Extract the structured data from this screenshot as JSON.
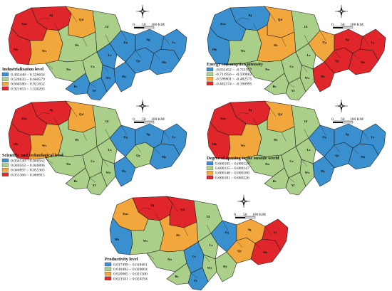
{
  "colors": {
    "blue": "#3a8fcf",
    "green": "#a9cf88",
    "orange": "#f2a73c",
    "red": "#e0262a"
  },
  "scale": {
    "zero": "0",
    "fifty": "50",
    "hundred": "100 KM"
  },
  "panels": [
    {
      "id": "industrialization",
      "title": "Industrialization level",
      "classes": [
        {
          "range": "0.435448 ~ 0.526634",
          "color": "#3a8fcf"
        },
        {
          "range": "0.526635 ~ 0.660579",
          "color": "#a9cf88"
        },
        {
          "range": "0.660580 ~ 0.921652",
          "color": "#f2a73c"
        },
        {
          "range": "0.921653 ~ 1.330205",
          "color": "#e0262a"
        }
      ],
      "regions": {
        "Bj": "red",
        "Km": "red",
        "Hb": "red",
        "Ws": "orange",
        "Qd": "orange",
        "Gl": "green",
        "Hc": "green",
        "Nn": "green",
        "Cz": "green",
        "Bs": "blue",
        "Lz": "blue",
        "Wz": "blue",
        "Yf": "blue",
        "Zq": "blue",
        "Hy": "blue",
        "Mz": "blue",
        "Qy": "blue",
        "Sg": "blue",
        "Ly": "blue"
      }
    },
    {
      "id": "energy",
      "title": "Energy consumption intensity",
      "classes": [
        {
          "range": "-0.831452 ~ -0.711957",
          "color": "#3a8fcf"
        },
        {
          "range": "-0.711956 ~ -0.599802",
          "color": "#a9cf88"
        },
        {
          "range": "-0.599801 ~ -0.482575",
          "color": "#f2a73c"
        },
        {
          "range": "-0.482574 ~ -0.398995",
          "color": "#e0262a"
        }
      ],
      "regions": {
        "Bj": "blue",
        "Km": "blue",
        "Hb": "blue",
        "Ws": "green",
        "Qd": "orange",
        "Gl": "green",
        "Hc": "orange",
        "Nn": "green",
        "Cz": "green",
        "Bs": "green",
        "Lz": "green",
        "Wz": "green",
        "Yf": "green",
        "Zq": "orange",
        "Hy": "red",
        "Mz": "red",
        "Qy": "red",
        "Sg": "red",
        "Ly": "red"
      }
    },
    {
      "id": "scitech",
      "title": "Scientific and technological level",
      "classes": [
        {
          "range": "0.034530 ~ 0.040562",
          "color": "#3a8fcf"
        },
        {
          "range": "0.040563 ~ 0.046896",
          "color": "#a9cf88"
        },
        {
          "range": "0.046897 ~ 0.055365",
          "color": "#f2a73c"
        },
        {
          "range": "0.055366 ~ 0.066915",
          "color": "#e0262a"
        }
      ],
      "regions": {
        "Bj": "red",
        "Km": "red",
        "Hb": "red",
        "Ws": "orange",
        "Qd": "orange",
        "Gl": "green",
        "Hc": "green",
        "Nn": "green",
        "Cz": "green",
        "Bs": "green",
        "Lz": "green",
        "Wz": "green",
        "Yf": "green",
        "Zq": "blue",
        "Hy": "blue",
        "Mz": "blue",
        "Qy": "green",
        "Sg": "blue",
        "Ly": "blue"
      }
    },
    {
      "id": "opening",
      "title": "Degree of opening to the outside world",
      "classes": [
        {
          "range": "0.000105 ~ 0.000124",
          "color": "#3a8fcf"
        },
        {
          "range": "0.000125 ~ 0.000147",
          "color": "#a9cf88"
        },
        {
          "range": "0.000148 ~ 0.000180",
          "color": "#f2a73c"
        },
        {
          "range": "0.000181 ~ 0.000226",
          "color": "#e0262a"
        }
      ],
      "regions": {
        "Bj": "red",
        "Km": "red",
        "Hb": "red",
        "Ws": "orange",
        "Qd": "orange",
        "Gl": "green",
        "Hc": "green",
        "Nn": "green",
        "Cz": "green",
        "Bs": "green",
        "Lz": "green",
        "Wz": "green",
        "Yf": "green",
        "Zq": "blue",
        "Hy": "blue",
        "Mz": "blue",
        "Qy": "blue",
        "Sg": "blue",
        "Ly": "blue"
      }
    },
    {
      "id": "productivity",
      "title": "Productivity level",
      "classes": [
        {
          "range": "0.017499 ~ 0.018481",
          "color": "#3a8fcf"
        },
        {
          "range": "0.018482 ~ 0.020004",
          "color": "#a9cf88"
        },
        {
          "range": "0.020005 ~ 0.021500",
          "color": "#f2a73c"
        },
        {
          "range": "0.021501 ~ 0.024594",
          "color": "#e0262a"
        }
      ],
      "regions": {
        "Bj": "red",
        "Km": "orange",
        "Hb": "blue",
        "Ws": "green",
        "Qd": "red",
        "Gl": "green",
        "Hc": "orange",
        "Nn": "green",
        "Cz": "blue",
        "Bs": "green",
        "Lz": "green",
        "Wz": "green",
        "Yf": "blue",
        "Zq": "blue",
        "Hy": "green",
        "Mz": "red",
        "Qy": "orange",
        "Sg": "orange",
        "Ly": "red"
      }
    }
  ]
}
